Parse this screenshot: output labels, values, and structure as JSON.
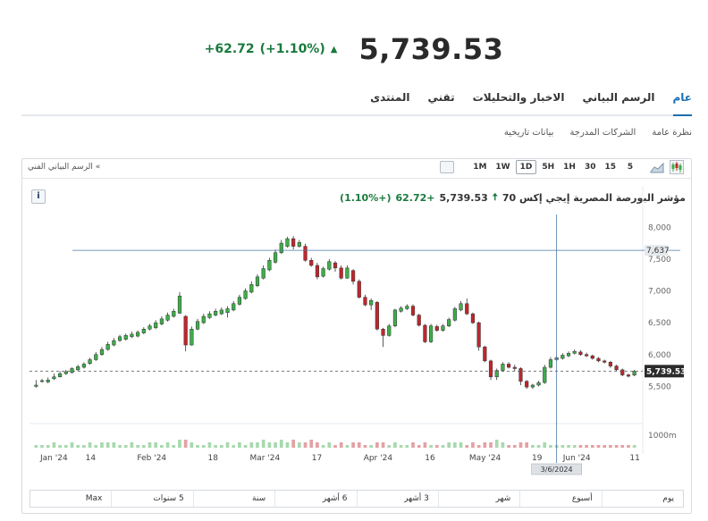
{
  "quote": {
    "price": "5,739.53",
    "change": "+62.72",
    "change_pct": "(+1.10%)"
  },
  "tabs": [
    {
      "label": "عام",
      "active": true
    },
    {
      "label": "الرسم البياني",
      "active": false
    },
    {
      "label": "الاخبار والتحليلات",
      "active": false
    },
    {
      "label": "تقني",
      "active": false
    },
    {
      "label": "المنتدى",
      "active": false
    }
  ],
  "subtabs": [
    "نظرة عامة",
    "الشركات المدرجة",
    "بيانات تاريخية"
  ],
  "toolbar": {
    "tech_link": "الرسم البياني الفني «",
    "timeframes": [
      "1M",
      "1W",
      "1D",
      "5H",
      "1H",
      "30",
      "15",
      "5"
    ],
    "active_timeframe": "1D"
  },
  "legend": {
    "name": "مؤشر البورصة المصرية إيجي إكس 70",
    "price": "5,739.53",
    "change": "+62.72",
    "change_pct": "(+1.10%)"
  },
  "info_label": "i",
  "periods": [
    "يوم",
    "أسبوع",
    "شهر",
    "3 أشهر",
    "6 أشهر",
    "سنة",
    "5 سنوات",
    "Max"
  ],
  "colors": {
    "up": "#3eae49",
    "down": "#c0262d",
    "accent": "#1a6fb4",
    "positive_text": "#1a7a3e"
  },
  "chart_data": {
    "type": "candlestick",
    "y_ticks": [
      "8,000",
      "7,500",
      "7,000",
      "6,500",
      "6,000",
      "5,500"
    ],
    "ylim": [
      5000,
      8200
    ],
    "x_labels": [
      "Jan '24",
      "14",
      "Feb '24",
      "18",
      "Mar '24",
      "17",
      "Apr '24",
      "16",
      "May '24",
      "19",
      "Jun '24",
      "11"
    ],
    "volume_label": "1000m",
    "last_price_label": "5,739.53",
    "crosshair_price": "7,637",
    "crosshair_date": "3/6/2024",
    "candles": [
      [
        5500,
        5520,
        5480,
        5600
      ],
      [
        5580,
        5590,
        5560,
        5620
      ],
      [
        5570,
        5600,
        5550,
        5640
      ],
      [
        5620,
        5650,
        5600,
        5700
      ],
      [
        5650,
        5700,
        5640,
        5740
      ],
      [
        5700,
        5730,
        5680,
        5760
      ],
      [
        5720,
        5780,
        5700,
        5800
      ],
      [
        5760,
        5810,
        5740,
        5840
      ],
      [
        5800,
        5850,
        5780,
        5880
      ],
      [
        5860,
        5920,
        5840,
        5950
      ],
      [
        5920,
        6000,
        5900,
        6040
      ],
      [
        6000,
        6080,
        5980,
        6120
      ],
      [
        6080,
        6160,
        6060,
        6200
      ],
      [
        6150,
        6220,
        6130,
        6260
      ],
      [
        6220,
        6280,
        6200,
        6310
      ],
      [
        6240,
        6300,
        6220,
        6330
      ],
      [
        6280,
        6320,
        6260,
        6360
      ],
      [
        6290,
        6350,
        6270,
        6380
      ],
      [
        6340,
        6400,
        6320,
        6430
      ],
      [
        6400,
        6450,
        6380,
        6480
      ],
      [
        6420,
        6500,
        6400,
        6540
      ],
      [
        6480,
        6560,
        6460,
        6600
      ],
      [
        6540,
        6620,
        6520,
        6660
      ],
      [
        6600,
        6680,
        6580,
        6720
      ],
      [
        6650,
        6920,
        6640,
        6980
      ],
      [
        6600,
        6150,
        6050,
        6620
      ],
      [
        6150,
        6400,
        6140,
        6440
      ],
      [
        6400,
        6520,
        6380,
        6560
      ],
      [
        6500,
        6600,
        6480,
        6640
      ],
      [
        6580,
        6640,
        6560,
        6680
      ],
      [
        6620,
        6680,
        6600,
        6720
      ],
      [
        6640,
        6700,
        6620,
        6740
      ],
      [
        6660,
        6720,
        6580,
        6760
      ],
      [
        6700,
        6800,
        6680,
        6840
      ],
      [
        6790,
        6900,
        6770,
        6940
      ],
      [
        6880,
        7000,
        6860,
        7040
      ],
      [
        6980,
        7100,
        6960,
        7150
      ],
      [
        7080,
        7220,
        7060,
        7260
      ],
      [
        7200,
        7350,
        7180,
        7400
      ],
      [
        7330,
        7480,
        7310,
        7520
      ],
      [
        7450,
        7600,
        7430,
        7650
      ],
      [
        7600,
        7750,
        7580,
        7800
      ],
      [
        7700,
        7820,
        7680,
        7850
      ],
      [
        7820,
        7700,
        7650,
        7860
      ],
      [
        7700,
        7760,
        7680,
        7800
      ],
      [
        7700,
        7480,
        7460,
        7740
      ],
      [
        7480,
        7400,
        7380,
        7520
      ],
      [
        7400,
        7220,
        7180,
        7440
      ],
      [
        7230,
        7350,
        7210,
        7380
      ],
      [
        7340,
        7460,
        7320,
        7500
      ],
      [
        7440,
        7360,
        7300,
        7470
      ],
      [
        7360,
        7200,
        7180,
        7400
      ],
      [
        7200,
        7360,
        7190,
        7400
      ],
      [
        7320,
        7150,
        7100,
        7340
      ],
      [
        7150,
        6900,
        6880,
        7180
      ],
      [
        6900,
        6780,
        6760,
        6940
      ],
      [
        6780,
        6850,
        6700,
        6880
      ],
      [
        6820,
        6400,
        6380,
        6840
      ],
      [
        6400,
        6300,
        6120,
        6420
      ],
      [
        6300,
        6450,
        6280,
        6480
      ],
      [
        6450,
        6700,
        6430,
        6720
      ],
      [
        6680,
        6730,
        6660,
        6760
      ],
      [
        6720,
        6760,
        6700,
        6790
      ],
      [
        6760,
        6620,
        6600,
        6790
      ],
      [
        6620,
        6460,
        6440,
        6640
      ],
      [
        6460,
        6200,
        6180,
        6480
      ],
      [
        6200,
        6450,
        6180,
        6480
      ],
      [
        6440,
        6380,
        6360,
        6470
      ],
      [
        6380,
        6450,
        6360,
        6480
      ],
      [
        6450,
        6550,
        6430,
        6580
      ],
      [
        6540,
        6720,
        6520,
        6750
      ],
      [
        6700,
        6800,
        6680,
        6840
      ],
      [
        6800,
        6640,
        6620,
        6880
      ],
      [
        6640,
        6500,
        6480,
        6660
      ],
      [
        6500,
        6120,
        6060,
        6520
      ],
      [
        6120,
        5900,
        5880,
        6140
      ],
      [
        5900,
        5650,
        5600,
        5920
      ],
      [
        5650,
        5750,
        5600,
        5780
      ],
      [
        5750,
        5850,
        5730,
        5880
      ],
      [
        5850,
        5800,
        5780,
        5880
      ],
      [
        5800,
        5780,
        5740,
        5840
      ],
      [
        5780,
        5580,
        5520,
        5800
      ],
      [
        5580,
        5490,
        5460,
        5600
      ],
      [
        5490,
        5520,
        5460,
        5540
      ],
      [
        5520,
        5560,
        5500,
        5590
      ],
      [
        5560,
        5800,
        5540,
        5840
      ],
      [
        5800,
        5920,
        5780,
        5960
      ],
      [
        5920,
        5950,
        5900,
        5980
      ],
      [
        5940,
        5990,
        5920,
        6020
      ],
      [
        5980,
        6020,
        5960,
        6050
      ],
      [
        6020,
        6050,
        6000,
        6080
      ],
      [
        6040,
        6000,
        5980,
        6070
      ],
      [
        6000,
        5980,
        5960,
        6030
      ],
      [
        5980,
        5940,
        5920,
        6000
      ],
      [
        5940,
        5900,
        5880,
        5960
      ],
      [
        5900,
        5880,
        5860,
        5920
      ],
      [
        5880,
        5820,
        5790,
        5900
      ],
      [
        5820,
        5760,
        5740,
        5840
      ],
      [
        5760,
        5680,
        5660,
        5780
      ],
      [
        5680,
        5660,
        5640,
        5700
      ],
      [
        5677,
        5740,
        5660,
        5760
      ]
    ],
    "volume": [
      1,
      1,
      1,
      2,
      1,
      1,
      2,
      1,
      1,
      2,
      1,
      2,
      2,
      2,
      1,
      1,
      2,
      1,
      1,
      2,
      2,
      1,
      2,
      1,
      3,
      3,
      2,
      1,
      1,
      2,
      1,
      1,
      2,
      1,
      2,
      1,
      2,
      2,
      3,
      2,
      2,
      3,
      2,
      3,
      2,
      2,
      3,
      2,
      1,
      2,
      1,
      2,
      1,
      2,
      2,
      1,
      1,
      2,
      2,
      1,
      2,
      1,
      1,
      2,
      1,
      2,
      1,
      1,
      1,
      2,
      2,
      2,
      1,
      2,
      1,
      2,
      2,
      3,
      2,
      1,
      1,
      2,
      2,
      1,
      1,
      2,
      1,
      1,
      1,
      1,
      1,
      1,
      1,
      1,
      1,
      1,
      1,
      1,
      1,
      1,
      1
    ]
  }
}
